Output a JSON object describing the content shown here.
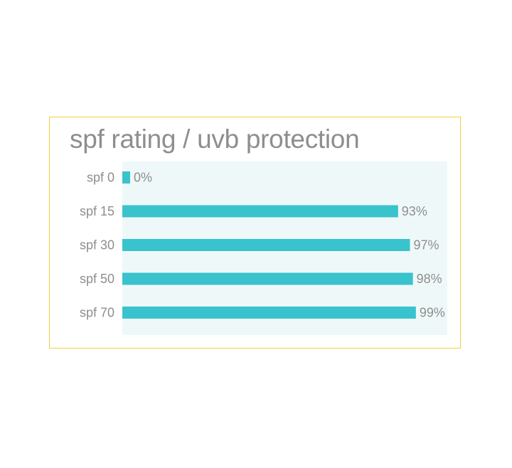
{
  "chart_data": {
    "type": "bar",
    "orientation": "horizontal",
    "title": "spf rating / uvb protection",
    "categories": [
      "spf 0",
      "spf 15",
      "spf 30",
      "spf 50",
      "spf 70"
    ],
    "values": [
      0,
      93,
      97,
      98,
      99
    ],
    "value_labels": [
      "0%",
      "93%",
      "97%",
      "98%",
      "99%"
    ],
    "xlim": [
      0,
      100
    ],
    "grid": false,
    "colors": {
      "bar": "#38c3cd",
      "plot_background": "#eff8f8",
      "frame_border": "#f3cf3f",
      "text": "#8e8e8e"
    }
  }
}
